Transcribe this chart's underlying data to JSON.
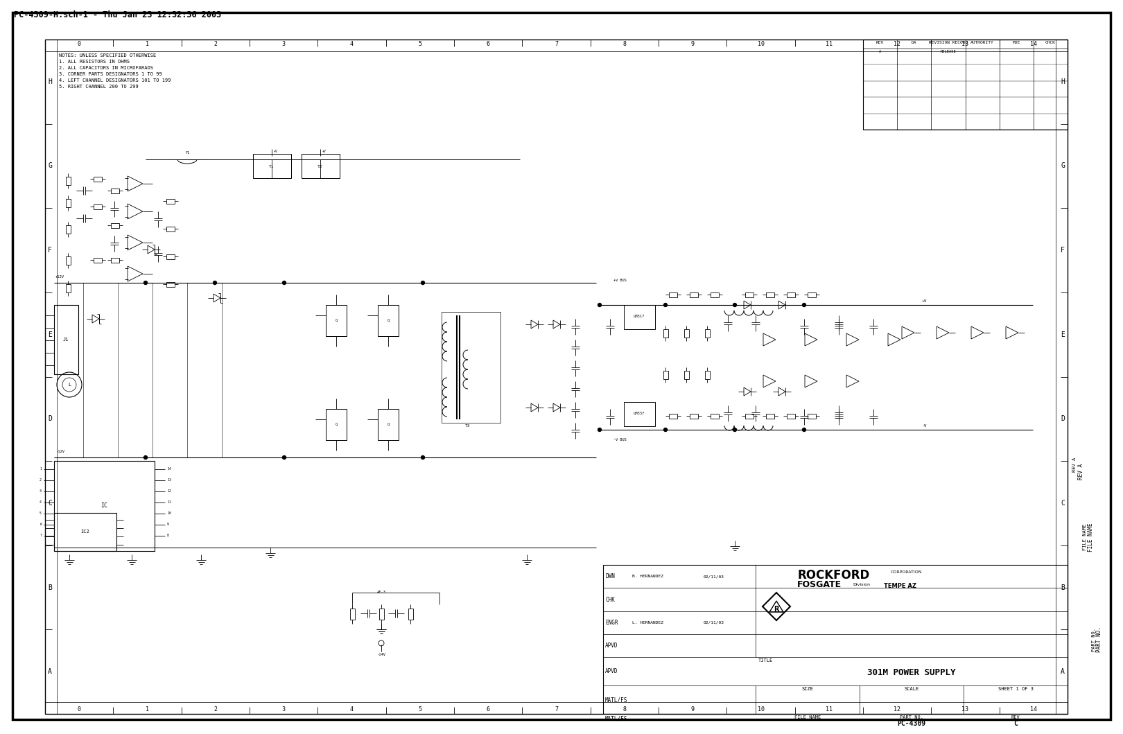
{
  "title_line": "PC-4309-H.sch-1 - Thu Jan 23 12:32:36 2003",
  "bg_color": "#ffffff",
  "col_labels": [
    "0",
    "1",
    "2",
    "3",
    "4",
    "5",
    "6",
    "7",
    "8",
    "9",
    "10",
    "11",
    "12",
    "13",
    "14"
  ],
  "row_labels": [
    "A",
    "B",
    "C",
    "D",
    "E",
    "F",
    "G",
    "H"
  ],
  "notes": [
    "NOTES: UNLESS SPECIFIED OTHERWISE",
    "1. ALL RESISTORS IN OHMS",
    "2. ALL CAPACITORS IN MICROFARADS",
    "3. CORNER PARTS DESIGNATORS 1 TO 99",
    "4. LEFT CHANNEL DESIGNATORS 101 TO 199",
    "5. RIGHT CHANNEL 200 TO 299"
  ],
  "title_block": {
    "dwn": "B. HERNANDEZ",
    "dwn_date": "02/11/03",
    "chk": "",
    "engr": "L. HERNANDEZ",
    "engr_date": "02/11/03",
    "title_text": "301M POWER SUPPLY",
    "sheet": "SHEET 1 OF 3",
    "part_no": "PC-4309",
    "rev": "C"
  },
  "revision_block": {
    "headers": [
      "REV",
      "DA",
      "REVISION RECORD",
      "AUTHORITY",
      "MDE",
      "CHCK"
    ],
    "rows": [
      [
        "A",
        "",
        "RELEASE",
        "",
        "",
        ""
      ]
    ]
  },
  "fig_width": 16.0,
  "fig_height": 10.36
}
